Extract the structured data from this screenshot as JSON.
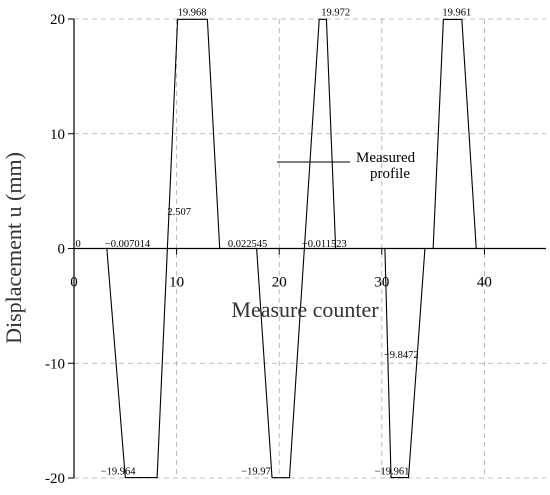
{
  "chart_data": {
    "type": "line",
    "xlabel": "Measure counter",
    "ylabel": "Displacement u (mm)",
    "xlim": [
      0,
      46
    ],
    "ylim": [
      -20,
      20
    ],
    "xticks": [
      0,
      10,
      20,
      30,
      40
    ],
    "yticks": [
      -20,
      -10,
      0,
      10,
      20
    ],
    "grid": true,
    "legend": {
      "placement": "center-right",
      "entries": [
        "Measured",
        "profile"
      ]
    },
    "series": [
      {
        "x": [
          0,
          3.2,
          5.0,
          8.1,
          8.6,
          10.1,
          13.0,
          14.2,
          17.2,
          17.8,
          19.3,
          21.0,
          23.9,
          24.6,
          25.5,
          26.3,
          26.9,
          30.3,
          30.9,
          32.6,
          34.2,
          35.0,
          36.0,
          37.8,
          39.2
        ],
        "y": [
          0,
          0,
          -19.96,
          -19.96,
          -10,
          19.97,
          19.97,
          0,
          0,
          0,
          -19.97,
          -19.97,
          19.97,
          19.97,
          0,
          0,
          0,
          0,
          -19.96,
          -19.96,
          0,
          0,
          19.96,
          19.96,
          0
        ]
      }
    ],
    "annotations": [
      {
        "text": "0",
        "x": 0.15,
        "y": 0.15,
        "anchor": "start"
      },
      {
        "text": "−0.007014",
        "x": 3.0,
        "y": 0.15,
        "anchor": "start"
      },
      {
        "text": "2.507",
        "x": 9.1,
        "y": 2.9,
        "anchor": "start"
      },
      {
        "text": "19.968",
        "x": 10.1,
        "y": 20.3,
        "anchor": "start"
      },
      {
        "text": "0.022545",
        "x": 15.0,
        "y": 0.15,
        "anchor": "start"
      },
      {
        "text": "19.972",
        "x": 24.1,
        "y": 20.3,
        "anchor": "start"
      },
      {
        "text": "−0.011523",
        "x": 22.2,
        "y": 0.15,
        "anchor": "start"
      },
      {
        "text": "19.961",
        "x": 35.9,
        "y": 20.3,
        "anchor": "start"
      },
      {
        "text": "−9.8472",
        "x": 30.2,
        "y": -9.55,
        "anchor": "start"
      },
      {
        "text": "−19.964",
        "x": 2.6,
        "y": -19.7,
        "anchor": "start"
      },
      {
        "text": "−19.97",
        "x": 16.3,
        "y": -19.7,
        "anchor": "start"
      },
      {
        "text": "−19.961",
        "x": 29.3,
        "y": -19.7,
        "anchor": "start"
      }
    ],
    "colors": {
      "line": "#000000",
      "grid": "#aaaaaa",
      "axis": "#000000"
    }
  }
}
